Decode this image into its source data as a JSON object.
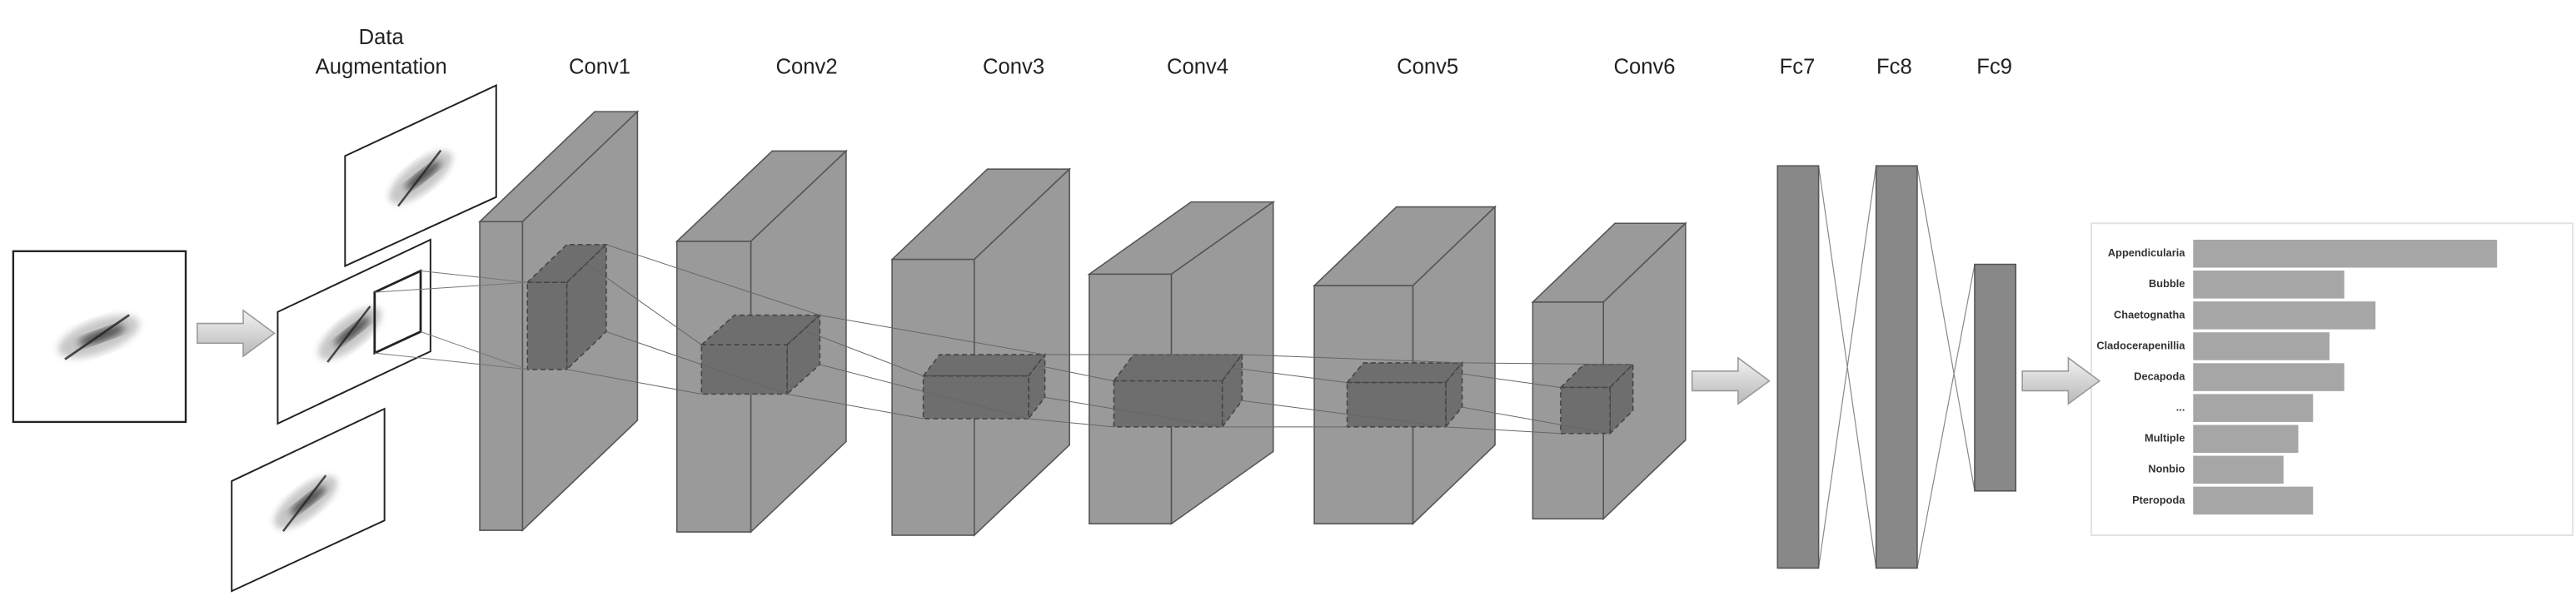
{
  "augmentation": {
    "label": [
      "Data",
      "Augmentation"
    ]
  },
  "layers": [
    {
      "label": "Conv1"
    },
    {
      "label": "Conv2"
    },
    {
      "label": "Conv3"
    },
    {
      "label": "Conv4"
    },
    {
      "label": "Conv5"
    },
    {
      "label": "Conv6"
    },
    {
      "label": "Fc7"
    },
    {
      "label": "Fc8"
    },
    {
      "label": "Fc9"
    }
  ],
  "output": {
    "classes": [
      {
        "label": "Appendicularia",
        "value": 185
      },
      {
        "label": "Bubble",
        "value": 92
      },
      {
        "label": "Chaetognatha",
        "value": 111
      },
      {
        "label": "Cladocerapenillia",
        "value": 83
      },
      {
        "label": "Decapoda",
        "value": 92
      },
      {
        "label": "...",
        "value": 73
      },
      {
        "label": "Multiple",
        "value": 64
      },
      {
        "label": "Nonbio",
        "value": 55
      },
      {
        "label": "Pteropoda",
        "value": 73
      }
    ]
  }
}
